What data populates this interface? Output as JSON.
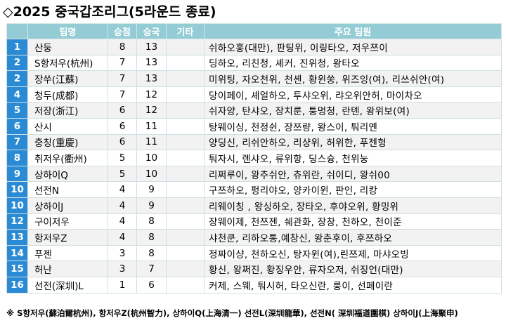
{
  "title": "◇2025 중국갑조리그(5라운드 종료)",
  "columns": [
    "",
    "팀명",
    "승점",
    "승국",
    "기타",
    "주요 팀원"
  ],
  "rows": [
    {
      "rank": "1",
      "team": "산둥",
      "points": "8",
      "wins": "13",
      "etc": "",
      "members": "쉬하오훙(대만), 판팅위, 이링타오, 저우쯔이"
    },
    {
      "rank": "2",
      "team": "S항저우(杭州)",
      "points": "7",
      "wins": "13",
      "etc": "",
      "members": "딩하오, 리친청, 셰커, 진위청, 왕타오"
    },
    {
      "rank": "2",
      "team": "장쑤(江蘇)",
      "points": "7",
      "wins": "13",
      "etc": "",
      "members": "미위팅, 자오천위, 천셴, 황윈쑹, 위즈잉(여), 리쓰쉬안(여)"
    },
    {
      "rank": "4",
      "team": "청두(成都)",
      "points": "7",
      "wins": "12",
      "etc": "",
      "members": "당이페이, 셰얼하오, 투샤오위, 랴오위안허, 마이차오"
    },
    {
      "rank": "5",
      "team": "저장(浙江)",
      "points": "6",
      "wins": "12",
      "etc": "",
      "members": "쉬자양, 탄샤오, 장치룬, 퉁멍청, 란톈, 왕위보(여)"
    },
    {
      "rank": "6",
      "team": "산시",
      "points": "6",
      "wins": "11",
      "etc": "",
      "members": "탕웨이싱, 천정쉰, 장쯔량, 왕스이, 퉈리옌"
    },
    {
      "rank": "7",
      "team": "충칭(重慶)",
      "points": "6",
      "wins": "11",
      "etc": "",
      "members": "양딩신, 리쉬안하오, 리샹위, 허위한, 푸젠헝"
    },
    {
      "rank": "8",
      "team": "취저우(衢州)",
      "points": "5",
      "wins": "10",
      "etc": "",
      "members": "퉈자시, 롄샤오, 류위항, 딩스슝, 천위눙"
    },
    {
      "rank": "9",
      "team": "상하이Q",
      "points": "5",
      "wins": "10",
      "etc": "",
      "members": "리쩌루이, 왕추쉬안, 츄위란, 쉬이디, 왕쉬00"
    },
    {
      "rank": "10",
      "team": "선전N",
      "points": "4",
      "wins": "9",
      "etc": "",
      "members": "구쯔하오, 펑리야오, 양카이윈, 판인, 리캉"
    },
    {
      "rank": "10",
      "team": "상하이J",
      "points": "4",
      "wins": "9",
      "etc": "",
      "members": "리웨이칭 , 왕싱하오, 장타오, 후야오위, 황밍위"
    },
    {
      "rank": "12",
      "team": "구이저우",
      "points": "4",
      "wins": "8",
      "etc": "",
      "members": "장웨이제, 천쯔젠, 쉐관화, 장창, 천하오, 천이준"
    },
    {
      "rank": "13",
      "team": "항저우Z",
      "points": "4",
      "wins": "8",
      "etc": "",
      "members": "샤천쿤, 리하오통,예창신, 왕춘후이, 후쯔하오"
    },
    {
      "rank": "14",
      "team": "푸젠",
      "points": "3",
      "wins": "8",
      "etc": "",
      "members": "정짜이샹, 천하오신, 탕자윈(여),린쯔제, 마샤오빙"
    },
    {
      "rank": "15",
      "team": "허난",
      "points": "3",
      "wins": "7",
      "etc": "",
      "members": "황신, 왕쩌진, 황징우안, 류자오저, 쉬징언(대만)"
    },
    {
      "rank": "16",
      "team": "선전(深圳)L",
      "points": "1",
      "wins": "6",
      "etc": "",
      "members": "커제, 스웨, 퉈시허, 타오신란, 룽이, 선페이란"
    }
  ],
  "footnote": "※ S항저우(蘇泊爾杭州), 항저우Z(杭州智力), 상하이Q(上海清一) 선전L(深圳龍華), 선전N( 深圳福道圍棋) 상하이J(上海聚申)",
  "colors": {
    "header_bg": "#94ccd6",
    "rank_bg": "#2a8bd4",
    "row_alt": "#f2f2f2"
  }
}
